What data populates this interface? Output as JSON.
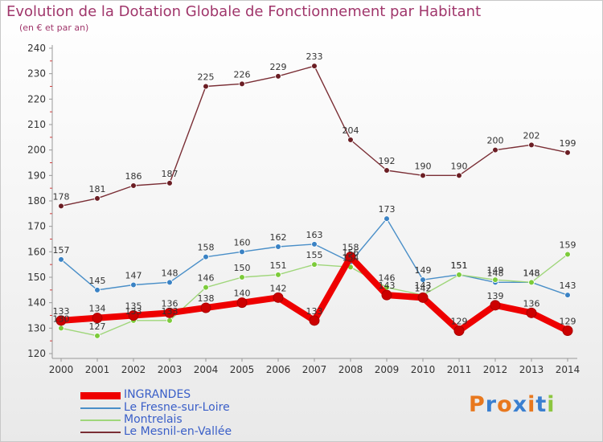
{
  "header": {
    "title": "Evolution de la Dotation Globale de Fonctionnement par Habitant",
    "subtitle": "(en € et par an)"
  },
  "logo": {
    "text": "Proxiti",
    "letter_colors": [
      "#e8781e",
      "#3a7fd0",
      "#e8781e",
      "#3a7fd0",
      "#e8781e",
      "#3a7fd0",
      "#8cc63f"
    ]
  },
  "chart_data": {
    "type": "line",
    "title": "Evolution de la Dotation Globale de Fonctionnement par Habitant",
    "subtitle": "(en € et par an)",
    "x": [
      "2000",
      "2001",
      "2002",
      "2003",
      "2004",
      "2005",
      "2006",
      "2007",
      "2008",
      "2009",
      "2010",
      "2011",
      "2012",
      "2013",
      "2014"
    ],
    "ylim": [
      120,
      240
    ],
    "yticks": [
      120,
      130,
      140,
      150,
      160,
      170,
      180,
      190,
      200,
      210,
      220,
      230,
      240
    ],
    "grid": false,
    "legend_position": "bottom-left",
    "series": [
      {
        "name": "Le Mesnil-en-Vallée",
        "color": "#7a2e35",
        "marker_color": "#6b1e24",
        "values": [
          178,
          181,
          186,
          187,
          225,
          226,
          229,
          233,
          204,
          192,
          190,
          190,
          200,
          202,
          199
        ]
      },
      {
        "name": "Le Fresne-sur-Loire",
        "color": "#4a8fc8",
        "marker_color": "#3a82c4",
        "values": [
          157,
          145,
          147,
          148,
          158,
          160,
          162,
          163,
          156,
          173,
          149,
          151,
          148,
          148,
          143
        ]
      },
      {
        "name": "Montrelais",
        "color": "#9fd67a",
        "marker_color": "#7ccb3a",
        "values": [
          130,
          127,
          133,
          133,
          146,
          150,
          151,
          155,
          154,
          146,
          143,
          151,
          149,
          148,
          159
        ]
      },
      {
        "name": "INGRANDES",
        "color": "#ee0000",
        "marker_color": "#cc0000",
        "values": [
          133,
          134,
          135,
          136,
          138,
          140,
          142,
          133,
          158,
          143,
          142,
          129,
          139,
          136,
          129
        ]
      }
    ],
    "legend_order": [
      "INGRANDES",
      "Le Fresne-sur-Loire",
      "Montrelais",
      "Le Mesnil-en-Vallée"
    ]
  }
}
